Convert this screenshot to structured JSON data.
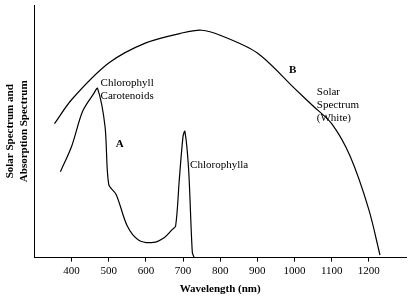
{
  "chart_data": {
    "type": "line",
    "x_label": "Wavelength (nm)",
    "y_label": [
      "Solar Spectrum and",
      "Absorption Spectrum"
    ],
    "xlim": [
      300,
      1300
    ],
    "xticks": [
      400,
      500,
      600,
      700,
      800,
      900,
      1000,
      1100,
      1200
    ],
    "ylim": [
      0,
      100
    ],
    "tick_labels": "x",
    "grid": false,
    "series": [
      {
        "name": "B",
        "color": "#000000",
        "x": [
          354,
          400,
          500,
          600,
          700,
          750,
          800,
          900,
          1000,
          1050,
          1100,
          1150,
          1200,
          1230
        ],
        "values": [
          53,
          62.5,
          77,
          85,
          89,
          90,
          88,
          81,
          67,
          60,
          53,
          40,
          19,
          1
        ]
      },
      {
        "name": "A",
        "color": "#000000",
        "x": [
          370,
          400,
          430,
          460,
          470,
          490,
          500,
          520,
          550,
          580,
          620,
          650,
          670,
          680,
          690,
          700,
          705,
          715,
          725,
          730
        ],
        "values": [
          34,
          44,
          58,
          65,
          67,
          52,
          29,
          25,
          12.5,
          7,
          6,
          8,
          11,
          12.5,
          31,
          48,
          50,
          35,
          2,
          0
        ]
      }
    ],
    "annotations": [
      [
        "Chlorophyll",
        "Carotenoids"
      ],
      [
        "A"
      ],
      [
        "B"
      ],
      [
        "Solar",
        "Spectrum",
        "(White)"
      ],
      [
        "Chlorophylla"
      ]
    ]
  }
}
